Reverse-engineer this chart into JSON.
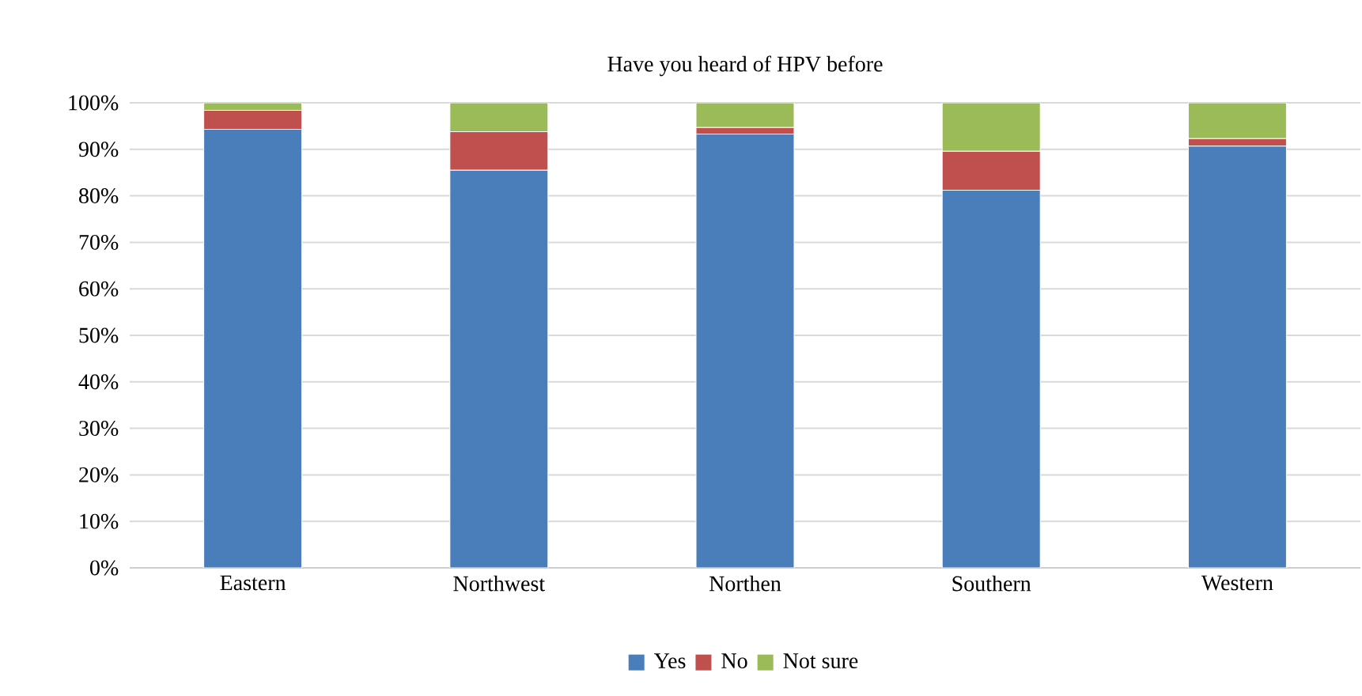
{
  "chart_data": {
    "type": "bar",
    "stacked": true,
    "title": "Have you heard of HPV before",
    "categories": [
      "Eastern",
      "Northwest",
      "Northen",
      "Southern",
      "Western"
    ],
    "series": [
      {
        "name": "Yes",
        "color": "#4a7ebb",
        "values": [
          94.3,
          85.5,
          93.3,
          81.2,
          90.7
        ]
      },
      {
        "name": "No",
        "color": "#c0504d",
        "values": [
          4.1,
          8.3,
          1.4,
          8.4,
          1.6
        ]
      },
      {
        "name": "Not sure",
        "color": "#9bbb59",
        "values": [
          1.6,
          6.2,
          5.3,
          10.4,
          7.7
        ]
      }
    ],
    "ylim": [
      0,
      100
    ],
    "yticks": [
      {
        "value": 0,
        "label": "0%"
      },
      {
        "value": 10,
        "label": "10%"
      },
      {
        "value": 20,
        "label": "20%"
      },
      {
        "value": 30,
        "label": "30%"
      },
      {
        "value": 40,
        "label": "40%"
      },
      {
        "value": 50,
        "label": "50%"
      },
      {
        "value": 60,
        "label": "60%"
      },
      {
        "value": 70,
        "label": "70%"
      },
      {
        "value": 80,
        "label": "80%"
      },
      {
        "value": 90,
        "label": "90%"
      },
      {
        "value": 100,
        "label": "100%"
      }
    ],
    "grid": "y",
    "legend": "bottom"
  }
}
